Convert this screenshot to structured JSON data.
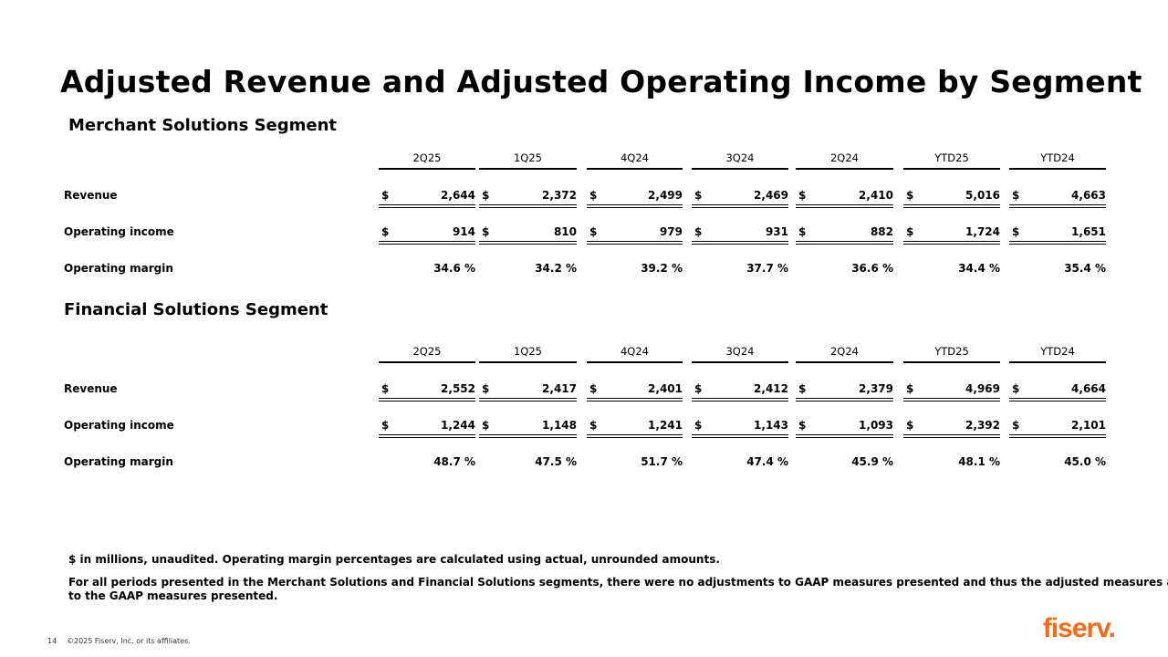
{
  "title": "Adjusted Revenue and Adjusted Operating Income by Segment",
  "columns": [
    "2Q25",
    "1Q25",
    "4Q24",
    "3Q24",
    "2Q24",
    "YTD25",
    "YTD24"
  ],
  "segments": [
    {
      "name": "Merchant Solutions Segment",
      "rows": [
        {
          "label": "Revenue",
          "currency": "$",
          "values": [
            "2,644",
            "2,372",
            "2,499",
            "2,469",
            "2,410",
            "5,016",
            "4,663"
          ]
        },
        {
          "label": "Operating income",
          "currency": "$",
          "values": [
            "914",
            "810",
            "979",
            "931",
            "882",
            "1,724",
            "1,651"
          ]
        },
        {
          "label": "Operating margin",
          "currency": "",
          "values": [
            "34.6 %",
            "34.2 %",
            "39.2 %",
            "37.7 %",
            "36.6 %",
            "34.4 %",
            "35.4 %"
          ]
        }
      ]
    },
    {
      "name": "Financial Solutions Segment",
      "rows": [
        {
          "label": "Revenue",
          "currency": "$",
          "values": [
            "2,552",
            "2,417",
            "2,401",
            "2,412",
            "2,379",
            "4,969",
            "4,664"
          ]
        },
        {
          "label": "Operating income",
          "currency": "$",
          "values": [
            "1,244",
            "1,148",
            "1,241",
            "1,143",
            "1,093",
            "2,392",
            "2,101"
          ]
        },
        {
          "label": "Operating margin",
          "currency": "",
          "values": [
            "48.7 %",
            "47.5 %",
            "51.7 %",
            "47.4 %",
            "45.9 %",
            "48.1 %",
            "45.0 %"
          ]
        }
      ]
    }
  ],
  "notes": {
    "note1": "$ in millions, unaudited. Operating margin percentages are calculated using actual, unrounded amounts.",
    "note2_line1": "For all periods presented in the Merchant Solutions and Financial Solutions segments, there were no adjustments to GAAP measures presented and thus the adjusted measures are equal",
    "note2_line2": "to the GAAP measures presented."
  },
  "footer": {
    "page_number": "14",
    "copyright": "©2025 Fiserv, Inc. or its affiliates."
  },
  "logo": {
    "text": "fiserv.",
    "color": "#f26c1b"
  }
}
